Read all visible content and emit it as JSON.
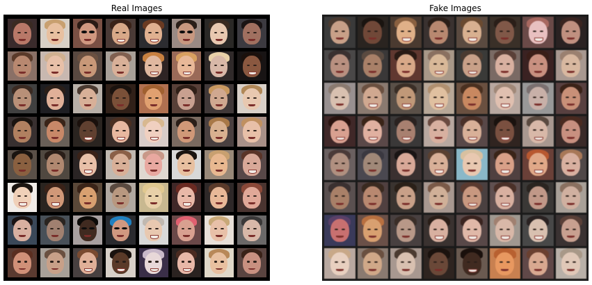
{
  "real_images": {
    "title": "Real Images",
    "rows": 8,
    "cols": 8,
    "tiles": [
      {
        "bg": "#3a2b2c",
        "face": "#b87868",
        "hair": "#3a2a22"
      },
      {
        "bg": "#d8d0c6",
        "face": "#e8c0a0",
        "hair": "#c8a070"
      },
      {
        "bg": "#7a5044",
        "face": "#d09880",
        "hair": "#2a1a14",
        "style": "shades"
      },
      {
        "bg": "#4a3a36",
        "face": "#d8a888",
        "hair": "#3a2218",
        "style": "smile"
      },
      {
        "bg": "#2c2c30",
        "face": "#e0b090",
        "hair": "#6a3a22",
        "style": "smile"
      },
      {
        "bg": "#9a8a84",
        "face": "#c89880",
        "hair": "#2a1e18",
        "style": "shades"
      },
      {
        "bg": "#2a2826",
        "face": "#e8c8b0",
        "hair": "#3a2a20"
      },
      {
        "bg": "#3c3a40",
        "face": "#a07060",
        "hair": "#1a1414"
      },
      {
        "bg": "#8a7066",
        "face": "#b88870",
        "hair": "#5a3a2a"
      },
      {
        "bg": "#c8b8b0",
        "face": "#e8c0a8",
        "hair": "#d0b090"
      },
      {
        "bg": "#584840",
        "face": "#c89878",
        "hair": "#6a5040"
      },
      {
        "bg": "#a8a098",
        "face": "#d8b098",
        "hair": "#806050"
      },
      {
        "bg": "#2e2424",
        "face": "#e0b8a0",
        "hair": "#c88040",
        "style": "smile"
      },
      {
        "bg": "#9a6a58",
        "face": "#e8b898",
        "hair": "#d8a060",
        "style": "smile"
      },
      {
        "bg": "#302a2a",
        "face": "#d8b8a8",
        "hair": "#e8d0a8"
      },
      {
        "bg": "#181414",
        "face": "#8a5840",
        "hair": "#1a100c",
        "style": "smile"
      },
      {
        "bg": "#404040",
        "face": "#b89078",
        "hair": "#3a2a22"
      },
      {
        "bg": "#1e1e22",
        "face": "#e0b098",
        "hair": "#2a1e18"
      },
      {
        "bg": "#b8b0a8",
        "face": "#d8b098",
        "hair": "#4a3a30"
      },
      {
        "bg": "#302018",
        "face": "#7a5038",
        "hair": "#1a120e"
      },
      {
        "bg": "#b07050",
        "face": "#e0a070",
        "hair": "#a06030"
      },
      {
        "bg": "#584038",
        "face": "#c8a090",
        "hair": "#302018"
      },
      {
        "bg": "#403838",
        "face": "#d0a890",
        "hair": "#c89860"
      },
      {
        "bg": "#d8d0c8",
        "face": "#e8c8b0",
        "hair": "#b08858"
      },
      {
        "bg": "#383030",
        "face": "#b08060",
        "hair": "#1a1410"
      },
      {
        "bg": "#6a6058",
        "face": "#c88868",
        "hair": "#3a2418"
      },
      {
        "bg": "#2a2420",
        "face": "#604030",
        "hair": "#1a100c",
        "style": "smile"
      },
      {
        "bg": "#3a2e2a",
        "face": "#e8b8a0",
        "hair": "#4a2e20",
        "style": "smile"
      },
      {
        "bg": "#d8ccc8",
        "face": "#f0d0c0",
        "hair": "#d8b890",
        "style": "smile"
      },
      {
        "bg": "#7a6a60",
        "face": "#d09878",
        "hair": "#2a1e18"
      },
      {
        "bg": "#4a4040",
        "face": "#d8b090",
        "hair": "#a87848"
      },
      {
        "bg": "#a89088",
        "face": "#e8c0a8",
        "hair": "#c09060"
      },
      {
        "bg": "#5a5048",
        "face": "#8a6040",
        "hair": "#1a1410"
      },
      {
        "bg": "#504840",
        "face": "#b08870",
        "hair": "#2a1e18"
      },
      {
        "bg": "#2a2424",
        "face": "#e8c0a8",
        "hair": "#3a2218",
        "style": "smile"
      },
      {
        "bg": "#c0b8b0",
        "face": "#d8b098",
        "hair": "#8a6048"
      },
      {
        "bg": "#e0d8d0",
        "face": "#e8a8a0",
        "hair": "#c89888"
      },
      {
        "bg": "#d8d8d8",
        "face": "#e8c0a0",
        "hair": "#1a1410"
      },
      {
        "bg": "#988878",
        "face": "#e8b890",
        "hair": "#c8a070"
      },
      {
        "bg": "#584848",
        "face": "#d8a898",
        "hair": "#5a3428",
        "style": "smile"
      },
      {
        "bg": "#f0ece8",
        "face": "#f0d0b8",
        "hair": "#1a1410",
        "style": "smile"
      },
      {
        "bg": "#2a2420",
        "face": "#d09878",
        "hair": "#3a2218",
        "style": "smile"
      },
      {
        "bg": "#5a4838",
        "face": "#d8a070",
        "hair": "#3a2418"
      },
      {
        "bg": "#b0a8a0",
        "face": "#b89880",
        "hair": "#5a4a40"
      },
      {
        "bg": "#c8b890",
        "face": "#e8d0a8",
        "hair": "#e0c890"
      },
      {
        "bg": "#402828",
        "face": "#e8b8a8",
        "hair": "#6a2a22",
        "style": "smile"
      },
      {
        "bg": "#2e2828",
        "face": "#e8b898",
        "hair": "#5a3a2a"
      },
      {
        "bg": "#4a3430",
        "face": "#e0a898",
        "hair": "#8a4838"
      },
      {
        "bg": "#3a4858",
        "face": "#d8b0a0",
        "hair": "#1a1414"
      },
      {
        "bg": "#485058",
        "face": "#a08070",
        "hair": "#2a2420"
      },
      {
        "bg": "#a8a0a0",
        "face": "#402a20",
        "hair": "#0c0a08",
        "style": "shades"
      },
      {
        "bg": "#2a2a2e",
        "face": "#d09880",
        "hair": "#2080c0",
        "style": "shades"
      },
      {
        "bg": "#d8d8d8",
        "face": "#e8c8b0",
        "hair": "#c0b8b0",
        "style": "smile"
      },
      {
        "bg": "#6a4848",
        "face": "#d8a090",
        "hair": "#e06070"
      },
      {
        "bg": "#e8e0d8",
        "face": "#e8c0a8",
        "hair": "#c8a878"
      },
      {
        "bg": "#6a6868",
        "face": "#d8b8a8",
        "hair": "#3a3838"
      },
      {
        "bg": "#5a3a30",
        "face": "#d09078",
        "hair": "#5a2e20"
      },
      {
        "bg": "#a8a098",
        "face": "#c8a088",
        "hair": "#6a5040"
      },
      {
        "bg": "#484040",
        "face": "#e0b098",
        "hair": "#7a4a30",
        "style": "smile"
      },
      {
        "bg": "#d8d0c8",
        "face": "#5a3a28",
        "hair": "#1a120e",
        "style": "smile"
      },
      {
        "bg": "#3a2e48",
        "face": "#e8d8d8",
        "hair": "#c8b8c8",
        "style": "smile"
      },
      {
        "bg": "#2a2220",
        "face": "#e8b8a8",
        "hair": "#4a2a20",
        "style": "smile"
      },
      {
        "bg": "#e0d8c8",
        "face": "#e8c0a0",
        "hair": "#b88858"
      },
      {
        "bg": "#5a4440",
        "face": "#c89080",
        "hair": "#3a2218"
      }
    ]
  },
  "fake_images": {
    "title": "Fake Images",
    "rows": 8,
    "cols": 8,
    "tiles": [
      {
        "bg": "#3a3a3a",
        "face": "#c8a088",
        "hair": "#4a3a30"
      },
      {
        "bg": "#2a2420",
        "face": "#704838",
        "hair": "#1a1410"
      },
      {
        "bg": "#4a3a30",
        "face": "#e0b088",
        "hair": "#8a6040",
        "style": "smile"
      },
      {
        "bg": "#3a3230",
        "face": "#b88870",
        "hair": "#2a1e18"
      },
      {
        "bg": "#5a4a40",
        "face": "#d8b090",
        "hair": "#6a4a30",
        "style": "smile"
      },
      {
        "bg": "#3a3028",
        "face": "#805848",
        "hair": "#2a1e18"
      },
      {
        "bg": "#6a4a48",
        "face": "#e8c0c0",
        "hair": "#a86860",
        "style": "smile"
      },
      {
        "bg": "#2a2222",
        "face": "#c09080",
        "hair": "#3a2420"
      },
      {
        "bg": "#4a4848",
        "face": "#b89080",
        "hair": "#3a3030"
      },
      {
        "bg": "#3a3838",
        "face": "#a88068",
        "hair": "#5a4a40"
      },
      {
        "bg": "#603830",
        "face": "#d8a888",
        "hair": "#2a1a14"
      },
      {
        "bg": "#a89888",
        "face": "#d8b898",
        "hair": "#8a7060",
        "style": "smile"
      },
      {
        "bg": "#3a3a38",
        "face": "#c8a088",
        "hair": "#4a3a30",
        "style": "smile"
      },
      {
        "bg": "#7a6a64",
        "face": "#d8b0a0",
        "hair": "#5a4038"
      },
      {
        "bg": "#3a2222",
        "face": "#c89080",
        "hair": "#3a1e18"
      },
      {
        "bg": "#a89890",
        "face": "#d8b8a0",
        "hair": "#9a8070"
      },
      {
        "bg": "#989090",
        "face": "#d8c0b0",
        "hair": "#8a7a70"
      },
      {
        "bg": "#8a7a70",
        "face": "#d0a890",
        "hair": "#6a5040",
        "style": "smile"
      },
      {
        "bg": "#5a5048",
        "face": "#c09878",
        "hair": "#3a2e26",
        "style": "smile"
      },
      {
        "bg": "#b8a898",
        "face": "#e0c0a0",
        "hair": "#b09070",
        "style": "smile"
      },
      {
        "bg": "#6a5040",
        "face": "#c88860",
        "hair": "#4a3020"
      },
      {
        "bg": "#b8a8a0",
        "face": "#e0c0b0",
        "hair": "#a08878",
        "style": "smile"
      },
      {
        "bg": "#989898",
        "face": "#c8b0a8",
        "hair": "#7a7070"
      },
      {
        "bg": "#584040",
        "face": "#c89078",
        "hair": "#3a2218"
      },
      {
        "bg": "#402828",
        "face": "#d8a090",
        "hair": "#2a1410",
        "style": "smile"
      },
      {
        "bg": "#5a4848",
        "face": "#e0b0a0",
        "hair": "#3a2418",
        "style": "smile"
      },
      {
        "bg": "#3a3838",
        "face": "#a88070",
        "hair": "#2a2220",
        "style": "smile"
      },
      {
        "bg": "#b8a8a0",
        "face": "#d8b0a0",
        "hair": "#6a4a40"
      },
      {
        "bg": "#584848",
        "face": "#d8b098",
        "hair": "#4a3028",
        "style": "smile"
      },
      {
        "bg": "#302420",
        "face": "#7a5040",
        "hair": "#1a120e",
        "style": "smile"
      },
      {
        "bg": "#a89890",
        "face": "#d8b8a8",
        "hair": "#5a4a40",
        "style": "smile"
      },
      {
        "bg": "#3a2a28",
        "face": "#c89080",
        "hair": "#4a2a20"
      },
      {
        "bg": "#6a6060",
        "face": "#b09080",
        "hair": "#4a3a38"
      },
      {
        "bg": "#4a4850",
        "face": "#a08878",
        "hair": "#3a3840"
      },
      {
        "bg": "#3a3030",
        "face": "#d8a898",
        "hair": "#1a1414"
      },
      {
        "bg": "#484040",
        "face": "#d8b098",
        "hair": "#5a4030",
        "style": "smile"
      },
      {
        "bg": "#8ab8c8",
        "face": "#e8c8b0",
        "hair": "#d8c0a0"
      },
      {
        "bg": "#504040",
        "face": "#d8a088",
        "hair": "#3a2418",
        "style": "smile"
      },
      {
        "bg": "#6a4038",
        "face": "#e0a888",
        "hair": "#b85830",
        "style": "smile"
      },
      {
        "bg": "#504848",
        "face": "#d8b0a0",
        "hair": "#a87858"
      },
      {
        "bg": "#5a5050",
        "face": "#a88068",
        "hair": "#3a3030"
      },
      {
        "bg": "#504040",
        "face": "#b88870",
        "hair": "#3a2a20"
      },
      {
        "bg": "#3a3430",
        "face": "#c8a088",
        "hair": "#2a2018"
      },
      {
        "bg": "#a89890",
        "face": "#d0b098",
        "hair": "#7a5a48"
      },
      {
        "bg": "#4a4040",
        "face": "#c89880",
        "hair": "#5a3a30",
        "style": "smile"
      },
      {
        "bg": "#605050",
        "face": "#d8b0a0",
        "hair": "#4a3028",
        "style": "smile"
      },
      {
        "bg": "#3a3836",
        "face": "#c09888",
        "hair": "#2a2420"
      },
      {
        "bg": "#a8a098",
        "face": "#d0b0a0",
        "hair": "#8a7060"
      },
      {
        "bg": "#3a3a5a",
        "face": "#c87070",
        "hair": "#5a4068"
      },
      {
        "bg": "#6a5048",
        "face": "#d8a070",
        "hair": "#b87040"
      },
      {
        "bg": "#484040",
        "face": "#b89888",
        "hair": "#3a2e28"
      },
      {
        "bg": "#3a3230",
        "face": "#d8b0a0",
        "hair": "#2a1e18",
        "style": "smile"
      },
      {
        "bg": "#584848",
        "face": "#e0b8a8",
        "hair": "#3a2420",
        "style": "smile"
      },
      {
        "bg": "#a09890",
        "face": "#d8b8a8",
        "hair": "#a08070",
        "style": "smile"
      },
      {
        "bg": "#484848",
        "face": "#d8c0b0",
        "hair": "#2a2222",
        "style": "smile"
      },
      {
        "bg": "#3a3232",
        "face": "#c8a090",
        "hair": "#5a4038"
      },
      {
        "bg": "#b8a8a0",
        "face": "#e8d0c0",
        "hair": "#c8a888"
      },
      {
        "bg": "#8a7a70",
        "face": "#d0a888",
        "hair": "#6a5040"
      },
      {
        "bg": "#a89890",
        "face": "#d8c0b0",
        "hair": "#4a3a30"
      },
      {
        "bg": "#2e2420",
        "face": "#6a4838",
        "hair": "#1a120e"
      },
      {
        "bg": "#6a5a50",
        "face": "#402a20",
        "hair": "#1a100c",
        "style": "smile"
      },
      {
        "bg": "#c88050",
        "face": "#e89860",
        "hair": "#b86030"
      },
      {
        "bg": "#604848",
        "face": "#d8a890",
        "hair": "#6a4030"
      },
      {
        "bg": "#b8b0a8",
        "face": "#e0c8b8",
        "hair": "#a89888"
      }
    ]
  }
}
